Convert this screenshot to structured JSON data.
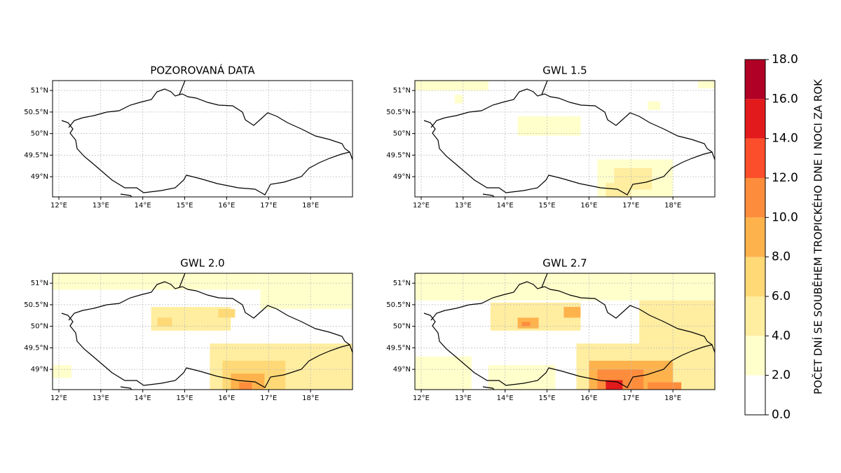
{
  "colorbar": {
    "label": "POČET DNÍ SE SOUBĚHEM TROPICKÉHO DNE I NOCI ZA ROK",
    "ticks": [
      {
        "value": 0,
        "label": "0.0"
      },
      {
        "value": 2,
        "label": "2.0"
      },
      {
        "value": 4,
        "label": "4.0"
      },
      {
        "value": 6,
        "label": "6.0"
      },
      {
        "value": 8,
        "label": "8.0"
      },
      {
        "value": 10,
        "label": "10.0"
      },
      {
        "value": 12,
        "label": "12.0"
      },
      {
        "value": 14,
        "label": "14.0"
      },
      {
        "value": 16,
        "label": "16.0"
      },
      {
        "value": 18,
        "label": "18.0"
      }
    ],
    "colors": [
      "#ffffff",
      "#ffffcc",
      "#ffeda0",
      "#fed976",
      "#feb24c",
      "#fd8d3c",
      "#fc4e2a",
      "#e31a1c",
      "#b10026"
    ]
  },
  "xlim": [
    11.85,
    19.0
  ],
  "ylim": [
    48.53,
    51.23
  ],
  "xticks": [
    {
      "value": 12,
      "label": "12°E"
    },
    {
      "value": 13,
      "label": "13°E"
    },
    {
      "value": 14,
      "label": "14°E"
    },
    {
      "value": 15,
      "label": "15°E"
    },
    {
      "value": 16,
      "label": "16°E"
    },
    {
      "value": 17,
      "label": "17°E"
    },
    {
      "value": 18,
      "label": "18°E"
    }
  ],
  "yticks": [
    {
      "value": 49,
      "label": "49°N"
    },
    {
      "value": 49.5,
      "label": "49.5°N"
    },
    {
      "value": 50,
      "label": "50°N"
    },
    {
      "value": 50.5,
      "label": "50.5°N"
    },
    {
      "value": 51,
      "label": "51°N"
    }
  ],
  "panels": [
    {
      "title": "POZOROVANÁ DATA",
      "patches": []
    },
    {
      "title": "GWL 1.5",
      "patches": [
        [
          11.85,
          13.6,
          51.0,
          51.23,
          3
        ],
        [
          12.8,
          13.0,
          50.7,
          50.9,
          3
        ],
        [
          17.4,
          17.7,
          50.55,
          50.75,
          3
        ],
        [
          18.6,
          19.0,
          51.05,
          51.23,
          3
        ],
        [
          14.3,
          15.8,
          49.95,
          50.4,
          3
        ],
        [
          16.2,
          18.0,
          48.53,
          49.4,
          3
        ],
        [
          16.6,
          17.5,
          48.7,
          49.2,
          4
        ],
        [
          16.4,
          17.0,
          48.53,
          48.85,
          5
        ]
      ]
    },
    {
      "title": "GWL 2.0",
      "patches": [
        [
          11.85,
          16.8,
          50.85,
          51.23,
          3
        ],
        [
          16.8,
          19.0,
          50.4,
          51.23,
          3
        ],
        [
          11.85,
          12.3,
          48.8,
          49.1,
          3
        ],
        [
          14.2,
          16.1,
          49.9,
          50.45,
          4
        ],
        [
          14.35,
          14.7,
          50.0,
          50.2,
          7
        ],
        [
          15.8,
          16.2,
          50.2,
          50.4,
          6
        ],
        [
          15.6,
          19.0,
          48.53,
          49.6,
          4
        ],
        [
          15.9,
          17.4,
          48.53,
          49.2,
          6
        ],
        [
          16.1,
          16.9,
          48.53,
          48.9,
          8
        ],
        [
          16.3,
          16.6,
          48.53,
          48.7,
          10
        ]
      ]
    },
    {
      "title": "GWL 2.7",
      "patches": [
        [
          11.85,
          19.0,
          50.6,
          51.23,
          3
        ],
        [
          17.2,
          19.0,
          49.6,
          50.6,
          4
        ],
        [
          11.85,
          13.2,
          48.53,
          49.3,
          3
        ],
        [
          13.6,
          15.2,
          48.53,
          49.1,
          3
        ],
        [
          13.65,
          15.8,
          49.9,
          50.55,
          5
        ],
        [
          14.3,
          14.8,
          49.95,
          50.2,
          8
        ],
        [
          14.4,
          14.6,
          50.0,
          50.1,
          11
        ],
        [
          15.4,
          15.8,
          50.2,
          50.45,
          8
        ],
        [
          15.7,
          19.0,
          48.53,
          49.6,
          5
        ],
        [
          16.0,
          18.0,
          48.53,
          49.2,
          8
        ],
        [
          16.2,
          17.3,
          48.53,
          49.0,
          11
        ],
        [
          16.4,
          16.8,
          48.53,
          48.75,
          15
        ],
        [
          17.4,
          18.2,
          48.53,
          48.7,
          11
        ]
      ]
    }
  ]
}
